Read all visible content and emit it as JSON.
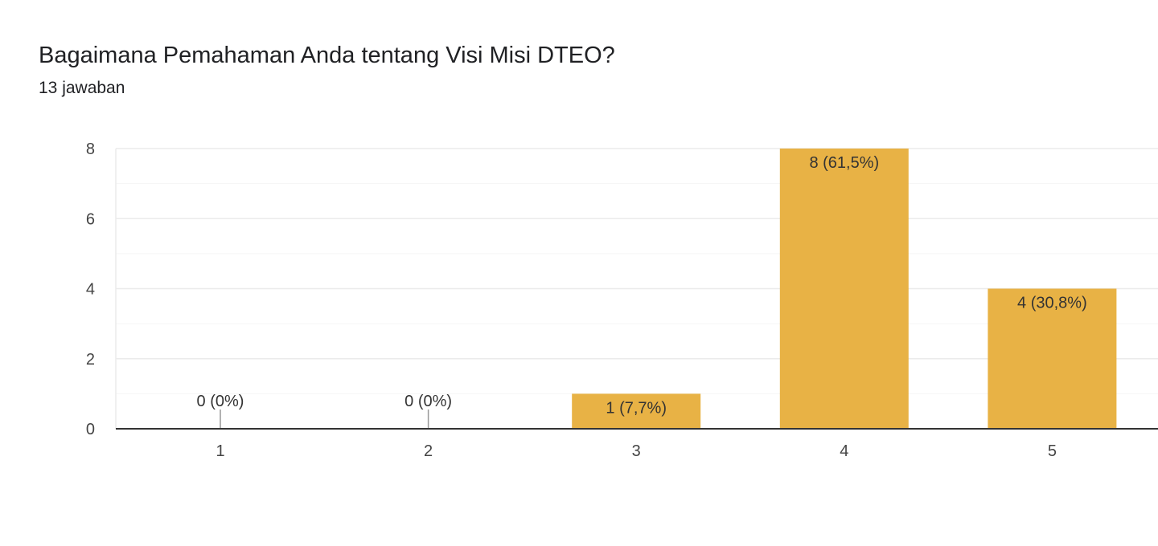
{
  "question": {
    "title": "Bagaimana Pemahaman Anda tentang Visi Misi DTEO?",
    "response_count": "13 jawaban"
  },
  "colors": {
    "bar": "#e8b245",
    "gridline": "#ebebeb",
    "minor_gridline": "#f5f5f5",
    "axis": "#333333",
    "zero_stub": "#999999"
  },
  "chart_data": {
    "type": "bar",
    "title": "",
    "xlabel": "",
    "ylabel": "",
    "categories": [
      "1",
      "2",
      "3",
      "4",
      "5"
    ],
    "values": [
      0,
      0,
      1,
      8,
      4
    ],
    "data_labels": [
      "0 (0%)",
      "0 (0%)",
      "1 (7,7%)",
      "8 (61,5%)",
      "4 (30,8%)"
    ],
    "ylim": [
      0,
      8
    ],
    "yticks": [
      0,
      2,
      4,
      6,
      8
    ],
    "minor_gridlines": true,
    "legend": "none"
  }
}
